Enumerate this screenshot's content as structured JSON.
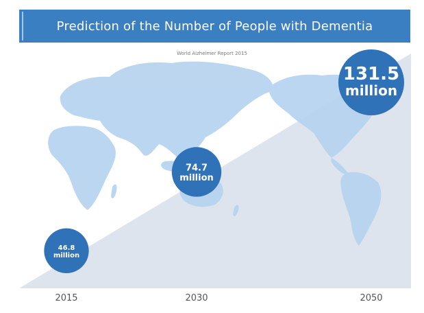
{
  "chart_data": {
    "type": "bubble",
    "title": "Prediction of the Number of People with Dementia",
    "subtitle": "World Alzheimer Report 2015",
    "categories": [
      "2015",
      "2030",
      "2050"
    ],
    "values": [
      46.8,
      74.7,
      131.5
    ],
    "value_labels": [
      {
        "number": "46.8",
        "unit": "million"
      },
      {
        "number": "74.7",
        "unit": "million"
      },
      {
        "number": "131.5",
        "unit": "million"
      }
    ],
    "colors": {
      "banner": "#3a7fc1",
      "bubble": "#2f72b8",
      "map": "#b6d3ef",
      "trend_area": "#dde4ee"
    }
  }
}
